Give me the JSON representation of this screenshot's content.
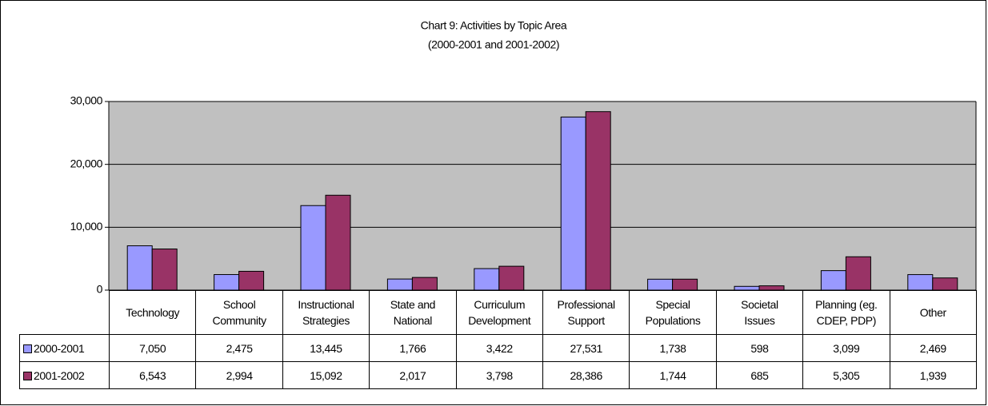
{
  "chart_data": {
    "type": "bar",
    "title": "Chart 9: Activities by Topic Area",
    "subtitle": "(2000-2001 and 2001-2002)",
    "categories": [
      "Technology",
      "School\nCommunity",
      "Instructional\nStrategies",
      "State and\nNational",
      "Curriculum\nDevelopment",
      "Professional\nSupport",
      "Special\nPopulations",
      "Societal\nIssues",
      "Planning (eg.\nCDEP, PDP)",
      "Other"
    ],
    "series": [
      {
        "name": "2000-2001",
        "color": "#9999ff",
        "values": [
          7050,
          2475,
          13445,
          1766,
          3422,
          27531,
          1738,
          598,
          3099,
          2469
        ],
        "value_labels": [
          "7,050",
          "2,475",
          "13,445",
          "1,766",
          "3,422",
          "27,531",
          "1,738",
          "598",
          "3,099",
          "2,469"
        ]
      },
      {
        "name": "2001-2002",
        "color": "#993366",
        "values": [
          6543,
          2994,
          15092,
          2017,
          3798,
          28386,
          1744,
          685,
          5305,
          1939
        ],
        "value_labels": [
          "6,543",
          "2,994",
          "15,092",
          "2,017",
          "3,798",
          "28,386",
          "1,744",
          "685",
          "5,305",
          "1,939"
        ]
      }
    ],
    "ylim": [
      0,
      30000
    ],
    "yticks": [
      0,
      {
        "value": 10000,
        "label": "10,000"
      },
      {
        "value": 20000,
        "label": "20,000"
      },
      {
        "value": 30000,
        "label": "30,000"
      }
    ],
    "grid": true,
    "plot_background": "#c0c0c0"
  }
}
